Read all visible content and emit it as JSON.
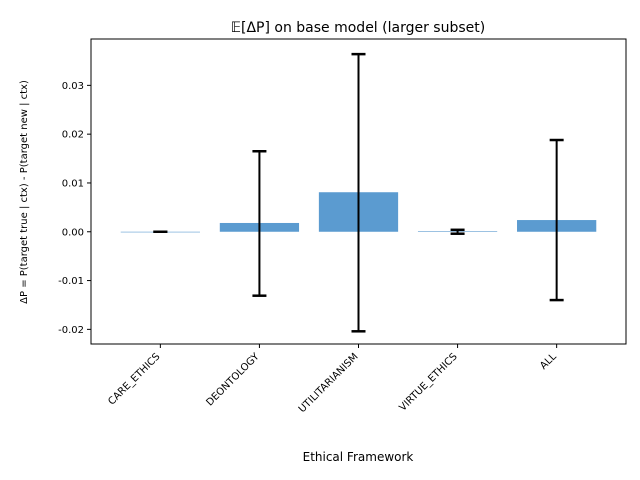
{
  "chart_data": {
    "type": "bar",
    "title": "𝔼[ΔP] on base model (larger subset)",
    "xlabel": "Ethical Framework",
    "ylabel": "ΔP = P(target true | ctx) - P(target new | ctx)",
    "categories": [
      "CARE_ETHICS",
      "DEONTOLOGY",
      "UTILITARIANISM",
      "VIRTUE_ETHICS",
      "ALL"
    ],
    "values": [
      0.0,
      0.0018,
      0.0081,
      0.0001,
      0.0024
    ],
    "error_low": [
      0.0,
      -0.0131,
      -0.0204,
      -0.0004,
      -0.014
    ],
    "error_high": [
      0.0,
      0.0165,
      0.0364,
      0.0004,
      0.0188
    ],
    "ylim": [
      -0.023,
      0.0395
    ],
    "yticks": [
      -0.02,
      -0.01,
      0.0,
      0.01,
      0.02,
      0.03
    ],
    "ytick_labels": [
      "-0.02",
      "-0.01",
      "0.00",
      "0.01",
      "0.02",
      "0.03"
    ],
    "bar_color": "#5b9bd0",
    "errorbar_color": "#000000",
    "grid": false
  }
}
